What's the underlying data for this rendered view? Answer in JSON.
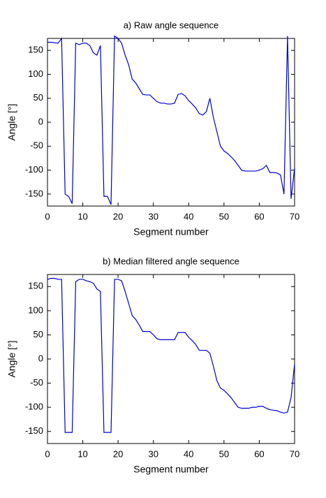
{
  "chart_data": [
    {
      "type": "line",
      "title": "a) Raw angle sequence",
      "xlabel": "Segment number",
      "ylabel": "Angle [°]",
      "x": [
        0,
        1,
        2,
        3,
        4,
        5,
        6,
        7,
        8,
        9,
        10,
        11,
        12,
        13,
        14,
        15,
        16,
        17,
        18,
        19,
        20,
        21,
        22,
        23,
        24,
        25,
        26,
        27,
        28,
        29,
        30,
        31,
        32,
        33,
        34,
        35,
        36,
        37,
        38,
        39,
        40,
        41,
        42,
        43,
        44,
        45,
        46,
        47,
        48,
        49,
        50,
        51,
        52,
        53,
        54,
        55,
        56,
        57,
        58,
        59,
        60,
        61,
        62,
        63,
        64,
        65,
        66,
        67,
        68,
        69,
        70
      ],
      "values": [
        167,
        167,
        166,
        165,
        175,
        -150,
        -155,
        -170,
        165,
        162,
        165,
        165,
        160,
        145,
        140,
        160,
        -155,
        -155,
        -172,
        180,
        175,
        165,
        140,
        120,
        90,
        82,
        70,
        58,
        57,
        57,
        50,
        43,
        40,
        40,
        38,
        38,
        40,
        58,
        60,
        55,
        45,
        38,
        30,
        18,
        15,
        22,
        50,
        10,
        -20,
        -50,
        -60,
        -65,
        -72,
        -80,
        -90,
        -100,
        -102,
        -102,
        -102,
        -102,
        -100,
        -97,
        -90,
        -105,
        -105,
        -106,
        -110,
        -150,
        180,
        -160,
        -95
      ],
      "color": "#0000cc",
      "xlim": [
        0,
        70
      ],
      "ylim": [
        -175,
        175
      ],
      "xticks": [
        0,
        10,
        20,
        30,
        40,
        50,
        60,
        70
      ],
      "yticks": [
        -150,
        -100,
        -50,
        0,
        50,
        100,
        150
      ]
    },
    {
      "type": "line",
      "title": "b) Median filtered angle sequence",
      "xlabel": "Segment number",
      "ylabel": "Angle [°]",
      "x": [
        0,
        1,
        2,
        3,
        4,
        5,
        6,
        7,
        8,
        9,
        10,
        11,
        12,
        13,
        14,
        15,
        16,
        17,
        18,
        19,
        20,
        21,
        22,
        23,
        24,
        25,
        26,
        27,
        28,
        29,
        30,
        31,
        32,
        33,
        34,
        35,
        36,
        37,
        38,
        39,
        40,
        41,
        42,
        43,
        44,
        45,
        46,
        47,
        48,
        49,
        50,
        51,
        52,
        53,
        54,
        55,
        56,
        57,
        58,
        59,
        60,
        61,
        62,
        63,
        64,
        65,
        66,
        67,
        68,
        69,
        70
      ],
      "values": [
        165,
        167,
        167,
        165,
        165,
        -152,
        -152,
        -152,
        160,
        165,
        165,
        162,
        160,
        157,
        145,
        140,
        -152,
        -152,
        -152,
        165,
        165,
        162,
        140,
        115,
        90,
        82,
        70,
        57,
        57,
        57,
        50,
        42,
        40,
        40,
        40,
        40,
        40,
        55,
        55,
        55,
        45,
        38,
        30,
        18,
        18,
        18,
        12,
        -15,
        -45,
        -60,
        -65,
        -72,
        -80,
        -90,
        -100,
        -102,
        -102,
        -102,
        -100,
        -100,
        -98,
        -98,
        -102,
        -105,
        -106,
        -107,
        -110,
        -112,
        -110,
        -80,
        -10
      ],
      "color": "#0000cc",
      "xlim": [
        0,
        70
      ],
      "ylim": [
        -175,
        175
      ],
      "xticks": [
        0,
        10,
        20,
        30,
        40,
        50,
        60,
        70
      ],
      "yticks": [
        -150,
        -100,
        -50,
        0,
        50,
        100,
        150
      ]
    }
  ]
}
